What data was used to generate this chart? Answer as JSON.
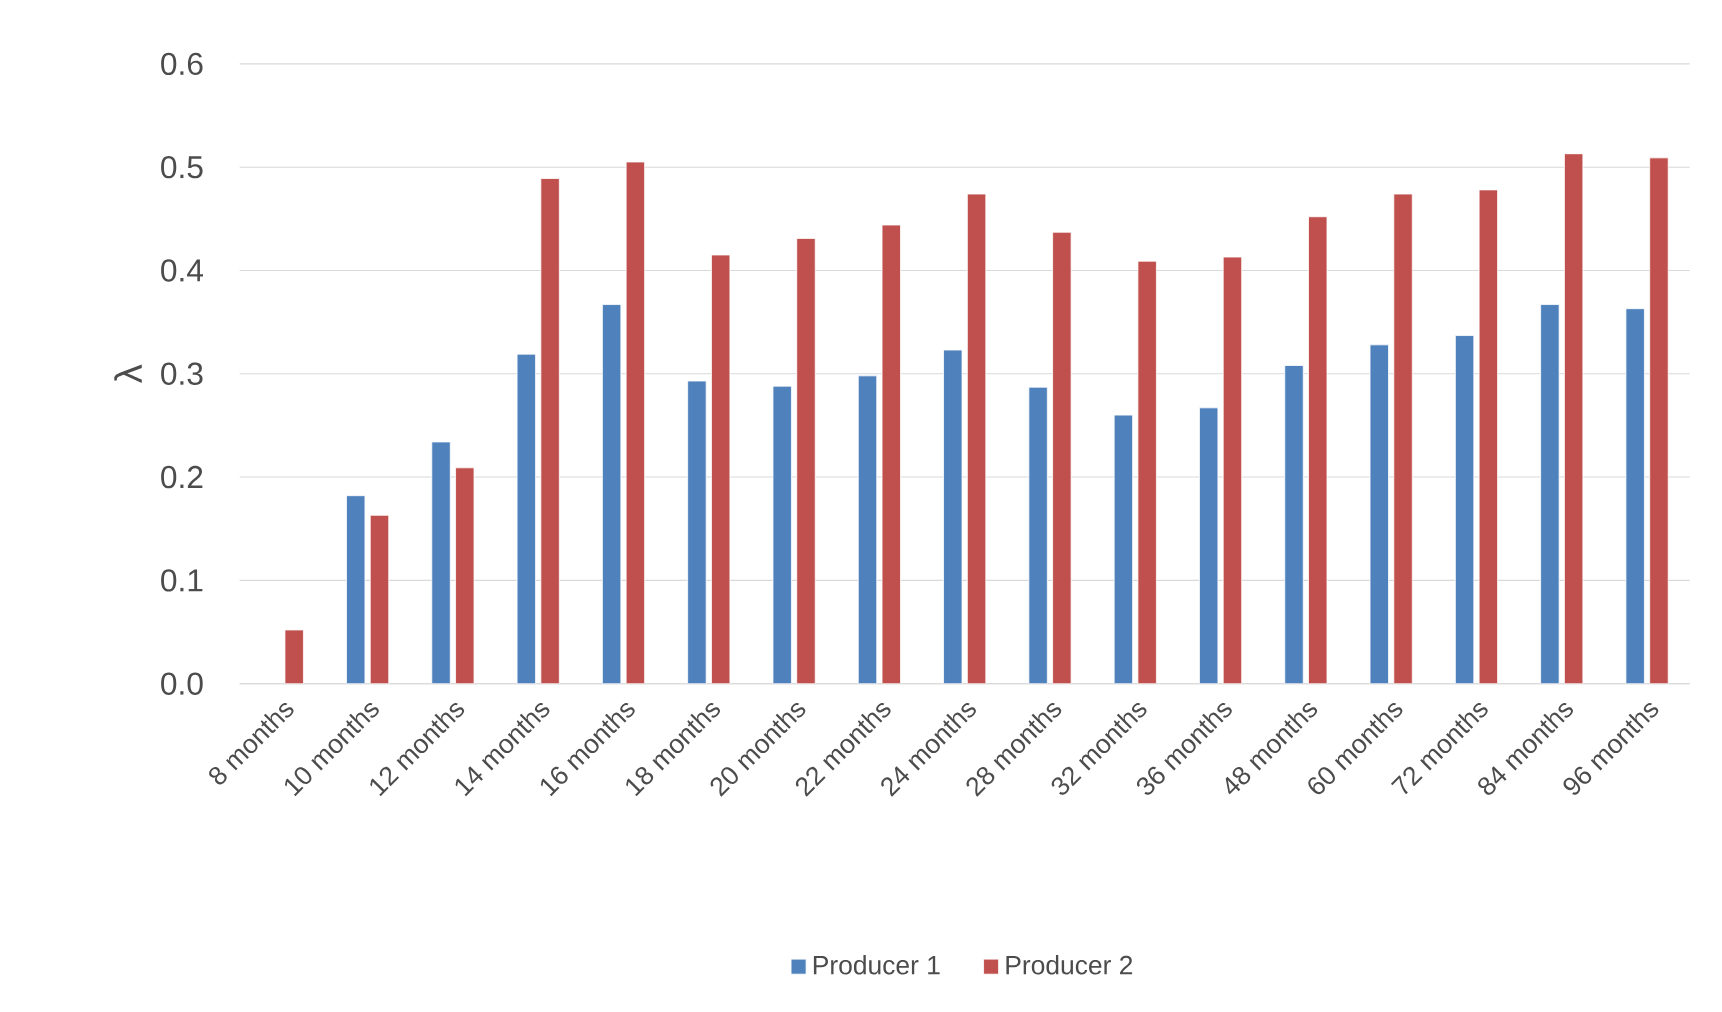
{
  "chart_data": {
    "type": "bar",
    "ylabel": "λ",
    "categories": [
      "8 months",
      "10 months",
      "12 months",
      "14 months",
      "16 months",
      "18 months",
      "20 months",
      "22 months",
      "24 months",
      "28 months",
      "32 months",
      "36 months",
      "48 months",
      "60 months",
      "72 months",
      "84 months",
      "96 months"
    ],
    "series": [
      {
        "name": "Producer 1",
        "color": "#4f81bd",
        "values": [
          null,
          0.182,
          0.234,
          0.319,
          0.367,
          0.293,
          0.288,
          0.298,
          0.323,
          0.287,
          0.26,
          0.267,
          0.308,
          0.328,
          0.337,
          0.367,
          0.363
        ]
      },
      {
        "name": "Producer 2",
        "color": "#c0504d",
        "values": [
          0.052,
          0.163,
          0.209,
          0.489,
          0.505,
          0.415,
          0.431,
          0.444,
          0.474,
          0.437,
          0.409,
          0.413,
          0.452,
          0.474,
          0.478,
          0.513,
          0.509
        ]
      }
    ],
    "ylim": [
      0,
      0.6
    ],
    "yticks": [
      {
        "value": 0,
        "label": "0.0"
      },
      {
        "value": 0.1,
        "label": "0.1"
      },
      {
        "value": 0.2,
        "label": "0.2"
      },
      {
        "value": 0.3,
        "label": "0.3"
      },
      {
        "value": 0.4,
        "label": "0.4"
      },
      {
        "value": 0.5,
        "label": "0.5"
      },
      {
        "value": 0.6,
        "label": "0.6"
      }
    ],
    "grid": "y",
    "legend": "bottom"
  }
}
